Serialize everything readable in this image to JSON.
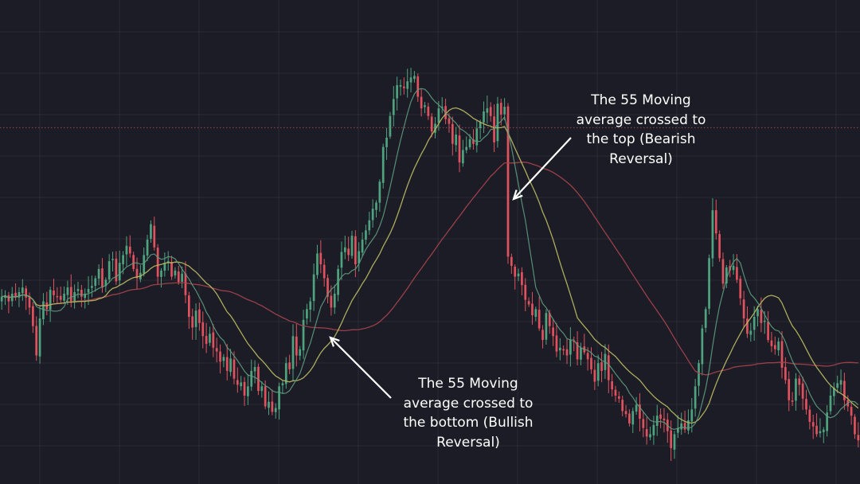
{
  "chart_data": {
    "type": "candlestick",
    "colors": {
      "background": "#1c1c26",
      "grid": "#2a2a35",
      "up": "#4fa37f",
      "down": "#e0525e",
      "ma_fast": "#5e9c80",
      "ma_mid": "#bdbd63",
      "ma_55": "#a9444c",
      "reference_line": "#c05050",
      "annotation": "#ffffff"
    },
    "ylim": [
      0,
      600
    ],
    "reference_level": 445,
    "legend": "none",
    "grid": true,
    "indicators": [
      "fast moving average",
      "medium moving average",
      "55 moving average"
    ],
    "annotations": [
      {
        "id": "bearish",
        "text": "The 55 Moving\naverage crossed to\nthe top (Bearish\nReversal)",
        "points_to_candle": 143
      },
      {
        "id": "bullish",
        "text": "The 55 Moving\naverage crossed to\nthe bottom (Bullish\nReversal)",
        "points_to_candle": 91
      }
    ],
    "closes": [
      226,
      228,
      220,
      230,
      225,
      232,
      238,
      225,
      212,
      188,
      150,
      198,
      220,
      210,
      235,
      228,
      226,
      222,
      230,
      238,
      220,
      232,
      236,
      226,
      230,
      236,
      240,
      250,
      262,
      238,
      248,
      272,
      275,
      246,
      270,
      280,
      292,
      282,
      262,
      250,
      257,
      280,
      300,
      320,
      290,
      252,
      260,
      270,
      272,
      252,
      260,
      245,
      256,
      228,
      200,
      186,
      208,
      192,
      175,
      165,
      178,
      160,
      155,
      142,
      148,
      130,
      146,
      120,
      112,
      115,
      98,
      110,
      130,
      135,
      104,
      110,
      84,
      90,
      77,
      82,
      110,
      114,
      140,
      132,
      175,
      150,
      158,
      196,
      210,
      220,
      255,
      282,
      268,
      250,
      226,
      212,
      230,
      262,
      284,
      290,
      280,
      305,
      268,
      285,
      300,
      312,
      325,
      340,
      348,
      375,
      420,
      432,
      460,
      482,
      500,
      500,
      496,
      505,
      510,
      512,
      485,
      470,
      474,
      460,
      440,
      450,
      470,
      472,
      456,
      450,
      424,
      436,
      400,
      416,
      420,
      430,
      424,
      444,
      452,
      466,
      470,
      460,
      426,
      476,
      462,
      472,
      278,
      266,
      252,
      256,
      241,
      222,
      216,
      202,
      210,
      185,
      170,
      205,
      188,
      175,
      155,
      160,
      158,
      150,
      170,
      168,
      145,
      160,
      154,
      145,
      132,
      116,
      140,
      130,
      152,
      118,
      106,
      98,
      94,
      78,
      74,
      62,
      78,
      86,
      68,
      56,
      45,
      48,
      60,
      72,
      68,
      66,
      52,
      30,
      48,
      56,
      62,
      54,
      66,
      80,
      110,
      140,
      185,
      210,
      276,
      338,
      308,
      276,
      243,
      264,
      260,
      266,
      248,
      224,
      198,
      178,
      182,
      200,
      210,
      192,
      195,
      170,
      162,
      158,
      168,
      134,
      118,
      92,
      90,
      120,
      112,
      94,
      80,
      64,
      58,
      48,
      52,
      54,
      76,
      98,
      108,
      114,
      118,
      92,
      84,
      72,
      48,
      40
    ]
  }
}
